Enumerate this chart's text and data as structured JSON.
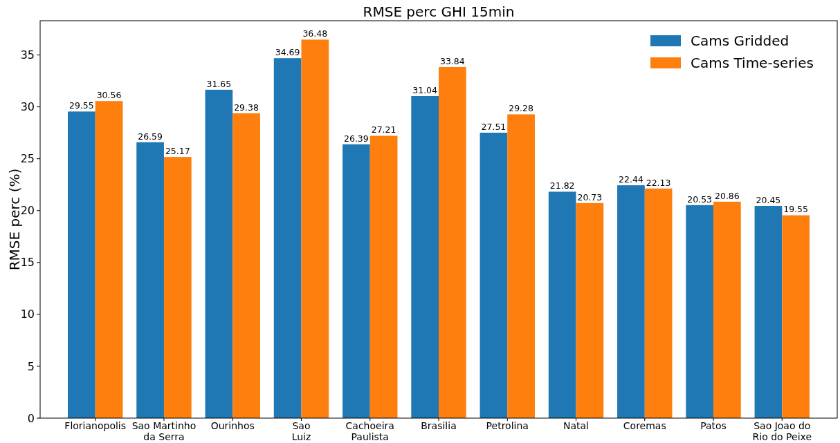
{
  "chart_data": {
    "type": "bar",
    "title": "RMSE perc GHI 15min",
    "ylabel": "RMSE perc (%)",
    "categories": [
      "Florianopolis",
      "Sao Martinho\nda Serra",
      "Ourinhos",
      "Sao\nLuiz",
      "Cachoeira\nPaulista",
      "Brasilia",
      "Petrolina",
      "Natal",
      "Coremas",
      "Patos",
      "Sao Joao do\nRio do Peixe"
    ],
    "series": [
      {
        "name": "Cams Gridded",
        "color": "#1f77b4",
        "values": [
          29.55,
          26.59,
          31.65,
          34.69,
          26.39,
          31.04,
          27.51,
          21.82,
          22.44,
          20.53,
          20.45
        ]
      },
      {
        "name": "Cams Time-series",
        "color": "#ff7f0e",
        "values": [
          30.56,
          25.17,
          29.38,
          36.48,
          27.21,
          33.84,
          29.28,
          20.73,
          22.13,
          20.86,
          19.55
        ]
      }
    ],
    "ylim": [
      0,
      38.3
    ],
    "yticks": [
      0,
      5,
      10,
      15,
      20,
      25,
      30,
      35
    ],
    "data_labels": true,
    "legend": "top right",
    "grid": false
  }
}
